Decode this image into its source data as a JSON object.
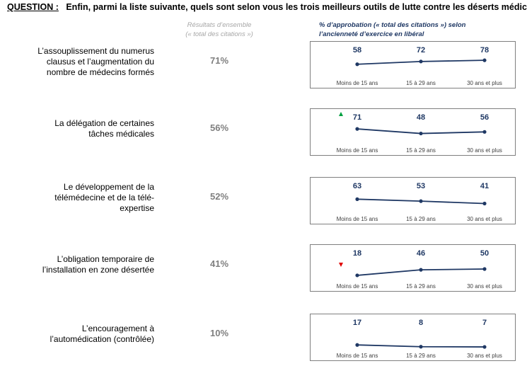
{
  "question": {
    "label": "QUESTION :",
    "text": "Enfin, parmi la liste suivante, quels sont selon vous les trois meilleurs outils de lutte contre les déserts médicaux ?"
  },
  "headers": {
    "overall_line1": "Résultats d’ensemble",
    "overall_line2": "(« total des citations »)",
    "trend_line1": "% d’approbation (« total des citations ») selon",
    "trend_line2": "l’ancienneté d’exercice en libéral"
  },
  "colors": {
    "line": "#1f3864",
    "up": "#00a040",
    "down": "#e00000",
    "overall": "#7f7f7f"
  },
  "chart_data": {
    "type": "line",
    "categories": [
      "Moins de 15 ans",
      "15 à 29 ans",
      "30 ans et plus"
    ],
    "items": [
      {
        "label_lines": [
          "L’assouplissement du numerus",
          "clausus et l’augmentation du",
          "nombre de médecins formés"
        ],
        "overall": "71%",
        "values": [
          58,
          72,
          78
        ],
        "marker": null
      },
      {
        "label_lines": [
          "La délégation de certaines",
          "tâches médicales"
        ],
        "overall": "56%",
        "values": [
          71,
          48,
          56
        ],
        "marker": "up"
      },
      {
        "label_lines": [
          "Le développement de la",
          "télémédecine et de la télé-",
          "expertise"
        ],
        "overall": "52%",
        "values": [
          63,
          53,
          41
        ],
        "marker": null
      },
      {
        "label_lines": [
          "L’obligation temporaire de",
          "l’installation en zone désertée"
        ],
        "overall": "41%",
        "values": [
          18,
          46,
          50
        ],
        "marker": "down"
      },
      {
        "label_lines": [
          "L’encouragement à",
          "l’automédication (contrôlée)"
        ],
        "overall": "10%",
        "values": [
          17,
          8,
          7
        ],
        "marker": null
      }
    ]
  }
}
